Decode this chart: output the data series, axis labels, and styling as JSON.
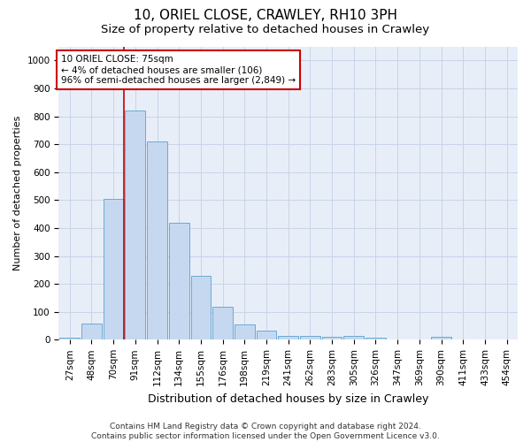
{
  "title": "10, ORIEL CLOSE, CRAWLEY, RH10 3PH",
  "subtitle": "Size of property relative to detached houses in Crawley",
  "xlabel": "Distribution of detached houses by size in Crawley",
  "ylabel": "Number of detached properties",
  "bar_labels": [
    "27sqm",
    "48sqm",
    "70sqm",
    "91sqm",
    "112sqm",
    "134sqm",
    "155sqm",
    "176sqm",
    "198sqm",
    "219sqm",
    "241sqm",
    "262sqm",
    "283sqm",
    "305sqm",
    "326sqm",
    "347sqm",
    "369sqm",
    "390sqm",
    "411sqm",
    "433sqm",
    "454sqm"
  ],
  "bar_values": [
    8,
    57,
    505,
    820,
    710,
    418,
    230,
    117,
    55,
    32,
    15,
    13,
    10,
    13,
    8,
    0,
    0,
    10,
    0,
    0,
    0
  ],
  "bar_color": "#c5d8f0",
  "bar_edge_color": "#6aaad4",
  "vline_x": 2.5,
  "vline_color": "#cc0000",
  "annotation_title": "10 ORIEL CLOSE: 75sqm",
  "annotation_line1": "← 4% of detached houses are smaller (106)",
  "annotation_line2": "96% of semi-detached houses are larger (2,849) →",
  "annotation_box_facecolor": "#ffffff",
  "annotation_box_edgecolor": "#cc0000",
  "ylim": [
    0,
    1050
  ],
  "yticks": [
    0,
    100,
    200,
    300,
    400,
    500,
    600,
    700,
    800,
    900,
    1000
  ],
  "grid_color": "#c8d4e8",
  "bg_color": "#e8eef8",
  "footer_line1": "Contains HM Land Registry data © Crown copyright and database right 2024.",
  "footer_line2": "Contains public sector information licensed under the Open Government Licence v3.0.",
  "title_fontsize": 11,
  "subtitle_fontsize": 9.5,
  "ylabel_fontsize": 8,
  "xlabel_fontsize": 9,
  "tick_fontsize": 7.5,
  "annotation_fontsize": 7.5,
  "footer_fontsize": 6.5
}
